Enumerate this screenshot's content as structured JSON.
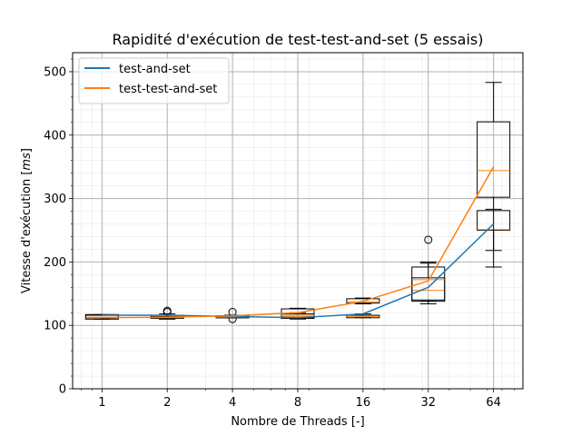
{
  "chart_data": {
    "type": "line",
    "title": "Rapidité d'exécution de test-test-and-set (5 essais)",
    "xlabel": "Nombre de Threads [-]",
    "ylabel": "Vitesse d'exécution [ms]",
    "ylabel_plain": "Vitesse d'exécution [",
    "ylabel_unit": "ms",
    "ylabel_close": "]",
    "categories": [
      "1",
      "2",
      "4",
      "8",
      "16",
      "32",
      "64"
    ],
    "x_scale": "log2",
    "ylim": [
      0,
      530
    ],
    "yticks": [
      0,
      100,
      200,
      300,
      400,
      500
    ],
    "grid": true,
    "legend": "top-left",
    "series": [
      {
        "name": "test-and-set",
        "color": "#1f77b4",
        "values": [
          116,
          116,
          114,
          112,
          118,
          160,
          260
        ],
        "boxes": [
          {
            "whislo": 110,
            "q1": 110,
            "med": 113,
            "q3": 117,
            "whishi": 117,
            "fliers": []
          },
          {
            "whislo": 110,
            "q1": 111,
            "med": 113,
            "q3": 116,
            "whishi": 118,
            "fliers": [
              121,
              123
            ]
          },
          {
            "whislo": 112,
            "q1": 112,
            "med": 114,
            "q3": 115,
            "whishi": 116,
            "fliers": [
              110,
              121
            ]
          },
          {
            "whislo": 110,
            "q1": 111,
            "med": 114,
            "q3": 126,
            "whishi": 127,
            "fliers": []
          },
          {
            "whislo": 112,
            "q1": 112,
            "med": 114,
            "q3": 116,
            "whishi": 118,
            "fliers": []
          },
          {
            "whislo": 134,
            "q1": 138,
            "med": 155,
            "q3": 192,
            "whishi": 198,
            "fliers": [
              235
            ]
          },
          {
            "whislo": 192,
            "q1": 250,
            "med": 251,
            "q3": 281,
            "whishi": 283,
            "fliers": []
          }
        ]
      },
      {
        "name": "test-test-and-set",
        "color": "#ff7f0e",
        "values": [
          112,
          113,
          115,
          120,
          138,
          170,
          350
        ],
        "boxes": [
          {
            "whislo": 110,
            "q1": 110,
            "med": 112,
            "q3": 116,
            "whishi": 116,
            "fliers": []
          },
          {
            "whislo": 110,
            "q1": 111,
            "med": 112,
            "q3": 114,
            "whishi": 116,
            "fliers": []
          },
          {
            "whislo": 112,
            "q1": 112,
            "med": 113,
            "q3": 115,
            "whishi": 116,
            "fliers": []
          },
          {
            "whislo": 112,
            "q1": 112,
            "med": 116,
            "q3": 118,
            "whishi": 120,
            "fliers": []
          },
          {
            "whislo": 134,
            "q1": 135,
            "med": 137,
            "q3": 142,
            "whishi": 143,
            "fliers": []
          },
          {
            "whislo": 138,
            "q1": 140,
            "med": 172,
            "q3": 175,
            "whishi": 200,
            "fliers": []
          },
          {
            "whislo": 218,
            "q1": 302,
            "med": 344,
            "q3": 421,
            "whishi": 483,
            "fliers": []
          }
        ]
      }
    ]
  }
}
